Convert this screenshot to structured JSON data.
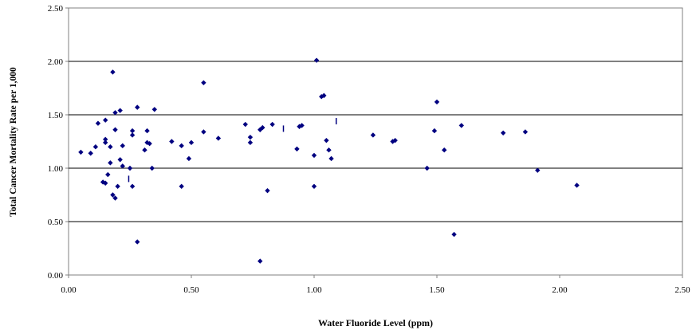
{
  "chart_data": {
    "type": "scatter",
    "title": "",
    "xlabel": "Water Fluoride Level (ppm)",
    "ylabel": "Total Cancer Mortality Rate per 1,000",
    "xlim": [
      0,
      2.5
    ],
    "ylim": [
      0,
      2.5
    ],
    "xticks": [
      "0.00",
      "0.50",
      "1.00",
      "1.50",
      "2.00",
      "2.50"
    ],
    "yticks": [
      "0.00",
      "0.50",
      "1.00",
      "1.50",
      "2.00",
      "2.50"
    ],
    "grid": "horizontal",
    "legend": "none",
    "marker": "diamond",
    "marker_color": "#000080",
    "points": [
      [
        0.05,
        1.15
      ],
      [
        0.09,
        1.14
      ],
      [
        0.11,
        1.2
      ],
      [
        0.12,
        1.42
      ],
      [
        0.14,
        0.87
      ],
      [
        0.15,
        0.86
      ],
      [
        0.15,
        1.27
      ],
      [
        0.15,
        1.24
      ],
      [
        0.15,
        1.45
      ],
      [
        0.16,
        0.94
      ],
      [
        0.17,
        1.05
      ],
      [
        0.17,
        1.2
      ],
      [
        0.18,
        0.75
      ],
      [
        0.18,
        1.9
      ],
      [
        0.19,
        0.72
      ],
      [
        0.19,
        1.36
      ],
      [
        0.19,
        1.52
      ],
      [
        0.2,
        0.83
      ],
      [
        0.21,
        1.54
      ],
      [
        0.21,
        1.08
      ],
      [
        0.22,
        1.02
      ],
      [
        0.22,
        1.21
      ],
      [
        0.25,
        1.0
      ],
      [
        0.26,
        0.83
      ],
      [
        0.26,
        1.31
      ],
      [
        0.26,
        1.35
      ],
      [
        0.28,
        0.31
      ],
      [
        0.28,
        1.57
      ],
      [
        0.31,
        1.17
      ],
      [
        0.32,
        1.35
      ],
      [
        0.32,
        1.24
      ],
      [
        0.33,
        1.23
      ],
      [
        0.34,
        1.0
      ],
      [
        0.35,
        1.55
      ],
      [
        0.42,
        1.25
      ],
      [
        0.46,
        1.21
      ],
      [
        0.46,
        0.83
      ],
      [
        0.49,
        1.09
      ],
      [
        0.5,
        1.24
      ],
      [
        0.55,
        1.34
      ],
      [
        0.55,
        1.8
      ],
      [
        0.61,
        1.28
      ],
      [
        0.72,
        1.41
      ],
      [
        0.74,
        1.24
      ],
      [
        0.74,
        1.29
      ],
      [
        0.78,
        0.13
      ],
      [
        0.78,
        1.36
      ],
      [
        0.79,
        1.38
      ],
      [
        0.81,
        0.79
      ],
      [
        0.83,
        1.41
      ],
      [
        0.93,
        1.18
      ],
      [
        0.94,
        1.39
      ],
      [
        0.95,
        1.4
      ],
      [
        1.0,
        1.12
      ],
      [
        1.0,
        0.83
      ],
      [
        1.01,
        2.01
      ],
      [
        1.03,
        1.67
      ],
      [
        1.04,
        1.68
      ],
      [
        1.05,
        1.26
      ],
      [
        1.06,
        1.17
      ],
      [
        1.07,
        1.09
      ],
      [
        1.24,
        1.31
      ],
      [
        1.32,
        1.25
      ],
      [
        1.33,
        1.26
      ],
      [
        1.46,
        1.0
      ],
      [
        1.49,
        1.35
      ],
      [
        1.5,
        1.62
      ],
      [
        1.53,
        1.17
      ],
      [
        1.57,
        0.38
      ],
      [
        1.6,
        1.4
      ],
      [
        1.77,
        1.33
      ],
      [
        1.86,
        1.34
      ],
      [
        1.91,
        0.98
      ],
      [
        2.07,
        0.84
      ]
    ],
    "bar_points": [
      [
        0.245,
        0.9
      ],
      [
        0.875,
        1.37
      ],
      [
        1.09,
        1.44
      ]
    ]
  }
}
